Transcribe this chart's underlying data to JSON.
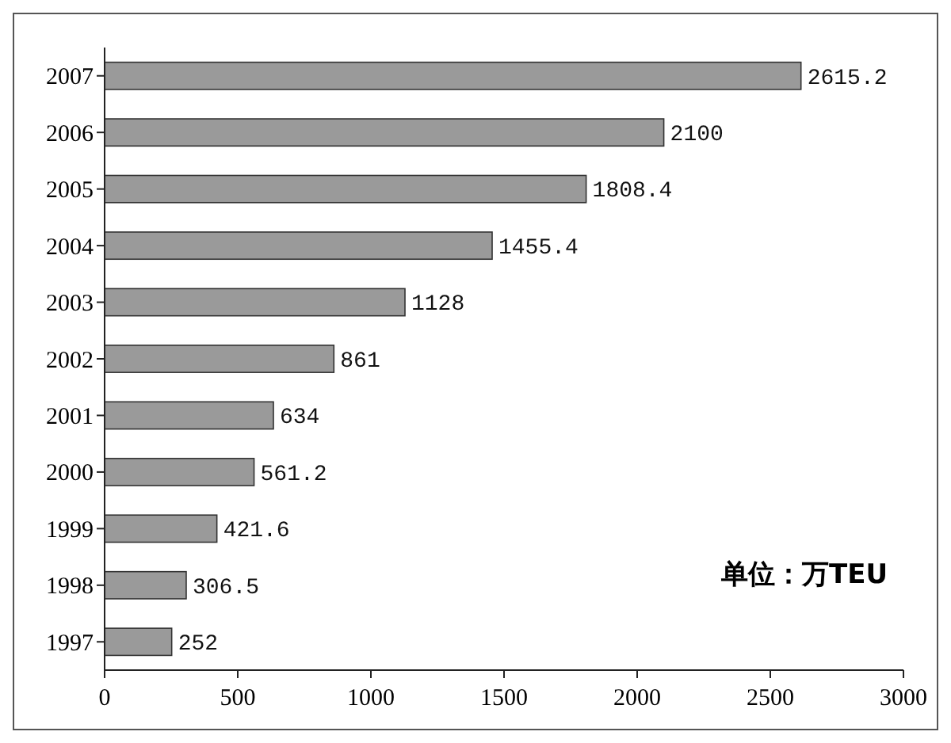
{
  "chart_data": {
    "type": "bar",
    "orientation": "horizontal",
    "categories": [
      "2007",
      "2006",
      "2005",
      "2004",
      "2003",
      "2002",
      "2001",
      "2000",
      "1999",
      "1998",
      "1997"
    ],
    "values": [
      2615.2,
      2100,
      1808.4,
      1455.4,
      1128,
      861,
      634,
      561.2,
      421.6,
      306.5,
      252
    ],
    "color": "#9a9a9a",
    "xlim": [
      0,
      3000
    ],
    "xticks": [
      0,
      500,
      1000,
      1500,
      2000,
      2500,
      3000
    ],
    "data_labels": true,
    "annotations": [
      "单位：万TEU"
    ]
  }
}
